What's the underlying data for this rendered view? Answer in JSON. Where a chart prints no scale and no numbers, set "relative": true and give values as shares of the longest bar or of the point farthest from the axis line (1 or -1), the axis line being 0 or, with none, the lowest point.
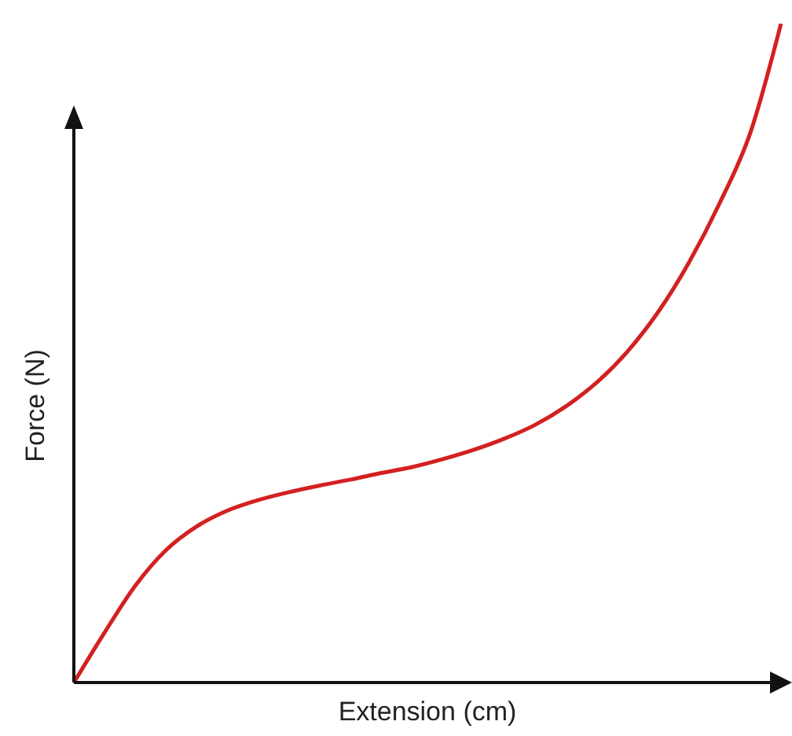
{
  "chart_data": {
    "type": "line",
    "relative": true,
    "xlabel": "Extension (cm)",
    "ylabel": "Force (N)",
    "categories": [
      null,
      null,
      null,
      null,
      null,
      null,
      null,
      null,
      null,
      null,
      null,
      null,
      null,
      null,
      null,
      null,
      null,
      null,
      null,
      null,
      null,
      null,
      null,
      null
    ],
    "series": [
      {
        "color": "#d42020",
        "values": [
          0,
          0.076,
          0.147,
          0.201,
          0.237,
          0.261,
          0.277,
          0.289,
          0.299,
          0.308,
          0.318,
          0.327,
          0.339,
          0.353,
          0.37,
          0.391,
          0.419,
          0.455,
          0.502,
          0.562,
          0.637,
          0.727,
          0.834,
          1
        ]
      }
    ],
    "marker": "none",
    "grid": false,
    "legend": false
  }
}
